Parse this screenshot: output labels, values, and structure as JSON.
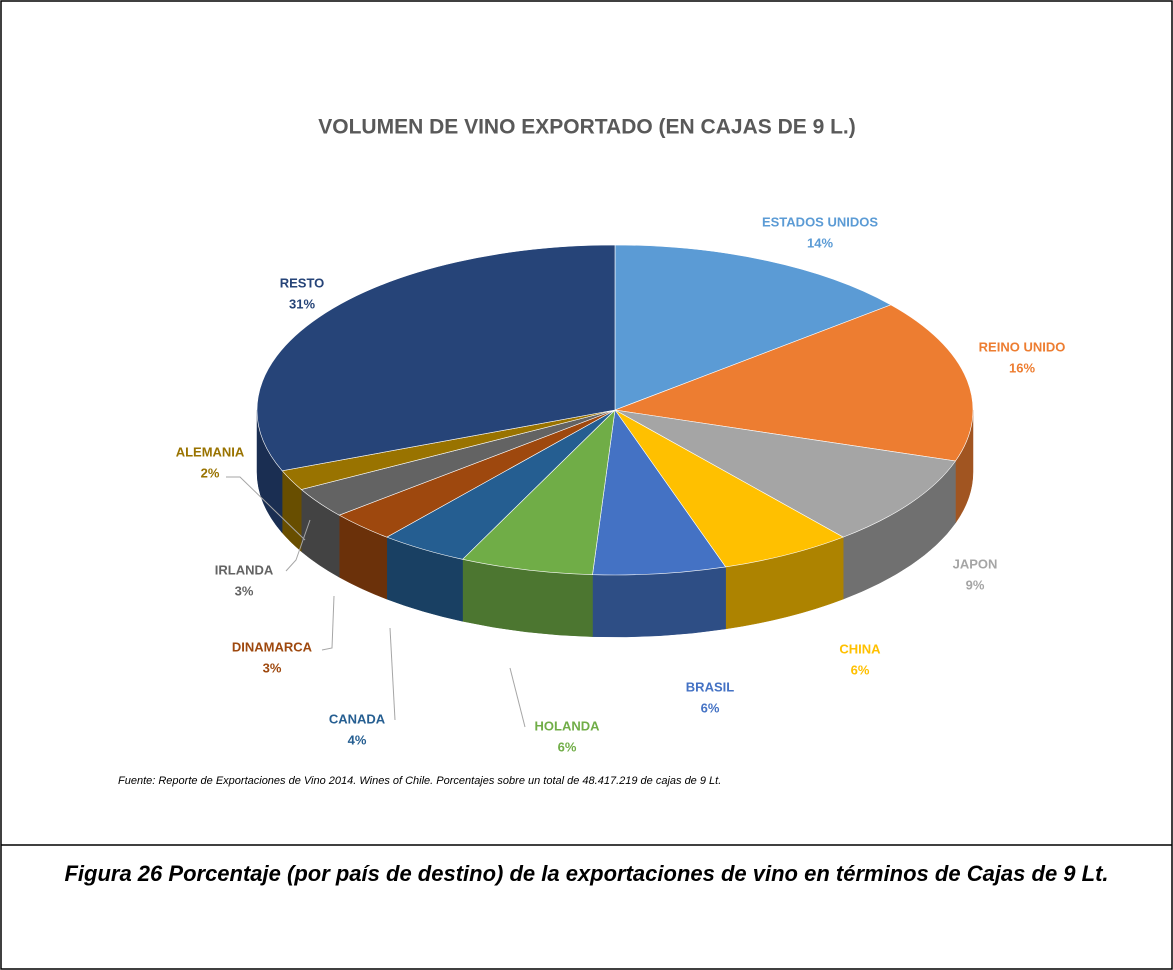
{
  "chart_data": {
    "type": "pie3d",
    "title": "VOLUMEN DE VINO EXPORTADO (EN CAJAS DE 9 L.)",
    "categories": [
      "ESTADOS UNIDOS",
      "REINO UNIDO",
      "JAPON",
      "CHINA",
      "BRASIL",
      "HOLANDA",
      "CANADA",
      "DINAMARCA",
      "IRLANDA",
      "ALEMANIA",
      "RESTO"
    ],
    "values": [
      14,
      16,
      9,
      6,
      6,
      6,
      4,
      3,
      3,
      2,
      31
    ],
    "value_labels": [
      "14%",
      "16%",
      "9%",
      "6%",
      "6%",
      "6%",
      "4%",
      "3%",
      "3%",
      "2%",
      "31%"
    ],
    "colors": [
      "#5b9bd5",
      "#ed7d31",
      "#a5a5a5",
      "#ffc000",
      "#4472c4",
      "#70ad47",
      "#255e91",
      "#9e480e",
      "#636363",
      "#997300",
      "#264478"
    ],
    "source": "Fuente: Reporte de Exportaciones de Vino 2014. Wines of Chile. Porcentajes sobre un total de 48.417.219 de cajas de 9 Lt."
  },
  "caption": "Figura 26 Porcentaje (por país de destino) de la exportaciones de vino en términos de Cajas de 9 Lt."
}
